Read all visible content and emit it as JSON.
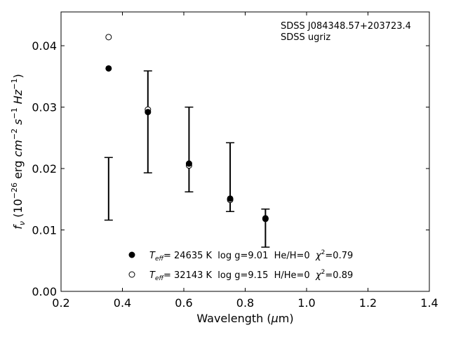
{
  "chart_data": {
    "type": "scatter",
    "xlabel": "Wavelength (μm)",
    "ylabel": "f_ν (10^-26 erg cm^-2 s^-1 Hz^-1)",
    "xlim": [
      0.2,
      1.4
    ],
    "ylim": [
      0.0,
      0.0455
    ],
    "xticks": [
      0.2,
      0.4,
      0.6,
      0.8,
      1.0,
      1.2,
      1.4
    ],
    "yticks": [
      0.0,
      0.01,
      0.02,
      0.03,
      0.04
    ],
    "xtick_labels": [
      "0.2",
      "0.4",
      "0.6",
      "0.8",
      "1.0",
      "1.2",
      "1.4"
    ],
    "ytick_labels": [
      "0.00",
      "0.01",
      "0.02",
      "0.03",
      "0.04"
    ],
    "annotation_lines": [
      "SDSS J084348.57+203723.4",
      "SDSS ugriz"
    ],
    "observed": {
      "x": [
        0.355,
        0.483,
        0.617,
        0.751,
        0.866
      ],
      "y": [
        0.0167,
        0.0276,
        0.0231,
        0.0186,
        0.0102
      ],
      "yerr_low": [
        0.0051,
        0.0083,
        0.0069,
        0.0056,
        0.003
      ],
      "yerr_high": [
        0.0051,
        0.0083,
        0.0069,
        0.0056,
        0.0032
      ]
    },
    "series": [
      {
        "name": "Teff= 24635 K  log g=9.01  He/H=0  χ²=0.79",
        "marker": "filled-circle",
        "x": [
          0.355,
          0.483,
          0.617,
          0.751,
          0.866
        ],
        "y": [
          0.0363,
          0.0292,
          0.0208,
          0.0151,
          0.0119
        ]
      },
      {
        "name": "Teff= 32143 K  log g=9.15  H/He=0  χ²=0.89",
        "marker": "open-circle",
        "x": [
          0.355,
          0.483,
          0.617,
          0.751,
          0.866
        ],
        "y": [
          0.0414,
          0.0296,
          0.0205,
          0.0149,
          0.0118
        ]
      }
    ],
    "legend_entries": [
      {
        "pre": "T",
        "sub": "eff",
        "text": "= 24635 K  log g=9.01  He/H=0  ",
        "chi": "χ",
        "sup": "2",
        "post": "=0.79"
      },
      {
        "pre": "T",
        "sub": "eff",
        "text": "= 32143 K  log g=9.15  H/He=0  ",
        "chi": "χ",
        "sup": "2",
        "post": "=0.89"
      }
    ],
    "legend_placement": "lower-center",
    "grid": false
  }
}
